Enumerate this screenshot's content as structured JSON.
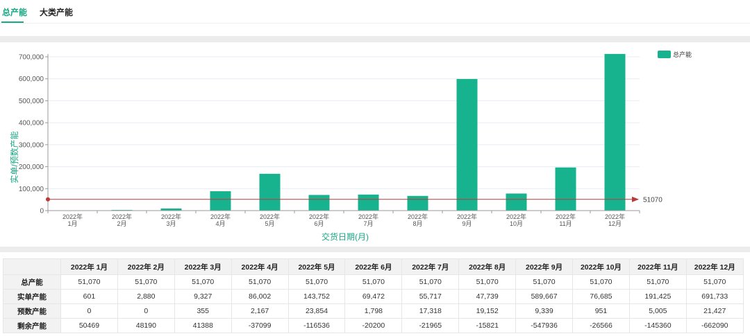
{
  "tabs": [
    {
      "label": "总产能",
      "active": true
    },
    {
      "label": "大类产能",
      "active": false
    }
  ],
  "colors": {
    "accent": "#17a884",
    "bar": "#17b38f",
    "refline": "#b83a3a",
    "band": "#ececec"
  },
  "chart_data": {
    "type": "bar",
    "categories": [
      [
        "2022年",
        "1月"
      ],
      [
        "2022年",
        "2月"
      ],
      [
        "2022年",
        "3月"
      ],
      [
        "2022年",
        "4月"
      ],
      [
        "2022年",
        "5月"
      ],
      [
        "2022年",
        "6月"
      ],
      [
        "2022年",
        "7月"
      ],
      [
        "2022年",
        "8月"
      ],
      [
        "2022年",
        "9月"
      ],
      [
        "2022年",
        "10月"
      ],
      [
        "2022年",
        "11月"
      ],
      [
        "2022年",
        "12月"
      ]
    ],
    "series": [
      {
        "name": "总产能",
        "values": [
          601,
          2880,
          9682,
          88169,
          167606,
          71270,
          73035,
          66891,
          599006,
          77636,
          196430,
          713160
        ]
      }
    ],
    "ylabel": "实单/预数产能",
    "xlabel": "交货日期(月)",
    "ylim": [
      0,
      700000
    ],
    "yticks": [
      0,
      100000,
      200000,
      300000,
      400000,
      500000,
      600000,
      700000
    ],
    "ytick_labels": [
      "0",
      "100,000",
      "200,000",
      "300,000",
      "400,000",
      "500,000",
      "600,000",
      "700,000"
    ],
    "reference_line": {
      "value": 51070,
      "label": "51070"
    },
    "legend": {
      "label": "总产能",
      "position": "top-right"
    }
  },
  "table": {
    "headers": [
      "",
      "2022年 1月",
      "2022年 2月",
      "2022年 3月",
      "2022年 4月",
      "2022年 5月",
      "2022年 6月",
      "2022年 7月",
      "2022年 8月",
      "2022年 9月",
      "2022年 10月",
      "2022年 11月",
      "2022年 12月"
    ],
    "rows": [
      {
        "label": "总产能",
        "cells": [
          "51,070",
          "51,070",
          "51,070",
          "51,070",
          "51,070",
          "51,070",
          "51,070",
          "51,070",
          "51,070",
          "51,070",
          "51,070",
          "51,070"
        ]
      },
      {
        "label": "实单产能",
        "cells": [
          "601",
          "2,880",
          "9,327",
          "86,002",
          "143,752",
          "69,472",
          "55,717",
          "47,739",
          "589,667",
          "76,685",
          "191,425",
          "691,733"
        ]
      },
      {
        "label": "预数产能",
        "cells": [
          "0",
          "0",
          "355",
          "2,167",
          "23,854",
          "1,798",
          "17,318",
          "19,152",
          "9,339",
          "951",
          "5,005",
          "21,427"
        ]
      },
      {
        "label": "剩余产能",
        "cells": [
          "50469",
          "48190",
          "41388",
          "-37099",
          "-116536",
          "-20200",
          "-21965",
          "-15821",
          "-547936",
          "-26566",
          "-145360",
          "-662090"
        ]
      }
    ]
  }
}
